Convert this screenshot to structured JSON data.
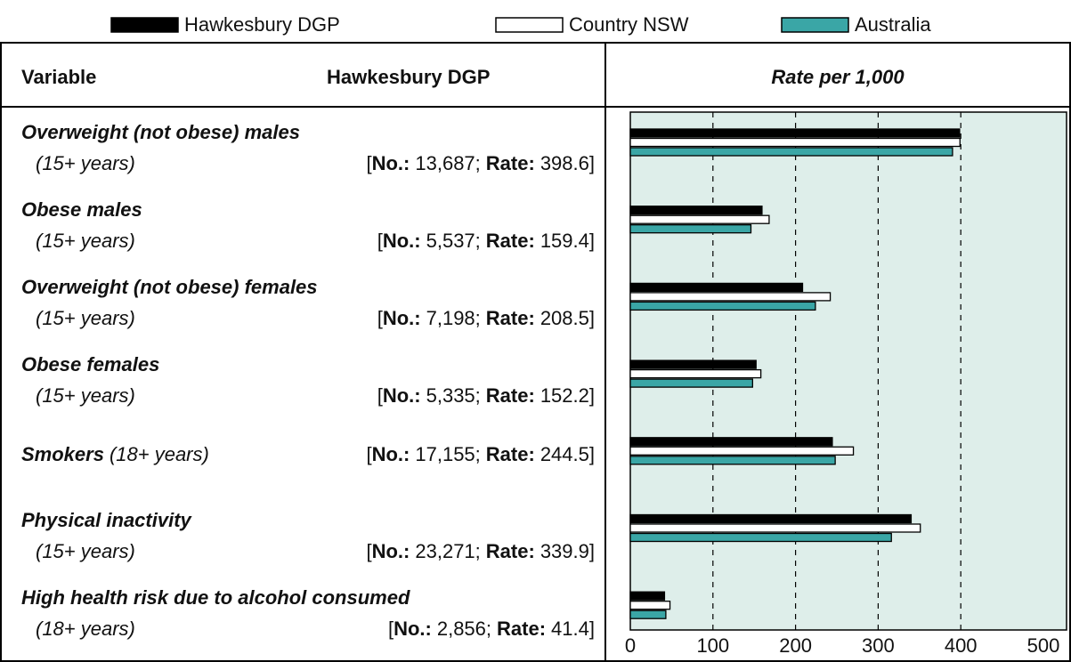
{
  "table": {
    "header": {
      "variable": "Variable",
      "area": "Hawkesbury DGP"
    },
    "punct": {
      "open": "[",
      "sep": ";",
      "close": "]"
    },
    "labels": {
      "no": "No.:",
      "rate": "Rate:"
    },
    "rows": [
      {
        "ages": "(15+ years)",
        "no": "13,687"
      },
      {
        "ages": "(15+ years)",
        "no": "5,537"
      },
      {
        "ages": "(15+ years)",
        "no": "7,198"
      },
      {
        "ages": "(15+ years)",
        "no": "5,335"
      },
      {
        "ages": "(18+ years)",
        "no": "17,155"
      },
      {
        "ages": "(15+ years)",
        "no": "23,271"
      },
      {
        "ages": "(18+ years)",
        "no": "2,856"
      }
    ]
  },
  "chart_data": {
    "type": "bar",
    "orientation": "horizontal",
    "title": "Rate per 1,000",
    "categories": [
      "Overweight (not obese) males",
      "Obese males",
      "Overweight (not obese) females",
      "Obese females",
      "Smokers",
      "Physical inactivity",
      "High health risk due to alcohol consumed"
    ],
    "series": [
      {
        "name": "Hawkesbury DGP",
        "color": "#000000",
        "values": [
          398.6,
          159.4,
          208.5,
          152.2,
          244.5,
          339.9,
          41.4
        ]
      },
      {
        "name": "Country NSW",
        "color": "#ffffff",
        "values": [
          399,
          168,
          242,
          158,
          270,
          351,
          48
        ]
      },
      {
        "name": "Australia",
        "color": "#3aa6a6",
        "values": [
          390,
          146,
          224,
          148,
          248,
          316,
          43
        ]
      }
    ],
    "xlim": [
      0,
      500
    ],
    "xticks": [
      0,
      100,
      200,
      300,
      400,
      500
    ],
    "grid": true,
    "background": "#deeeea"
  }
}
